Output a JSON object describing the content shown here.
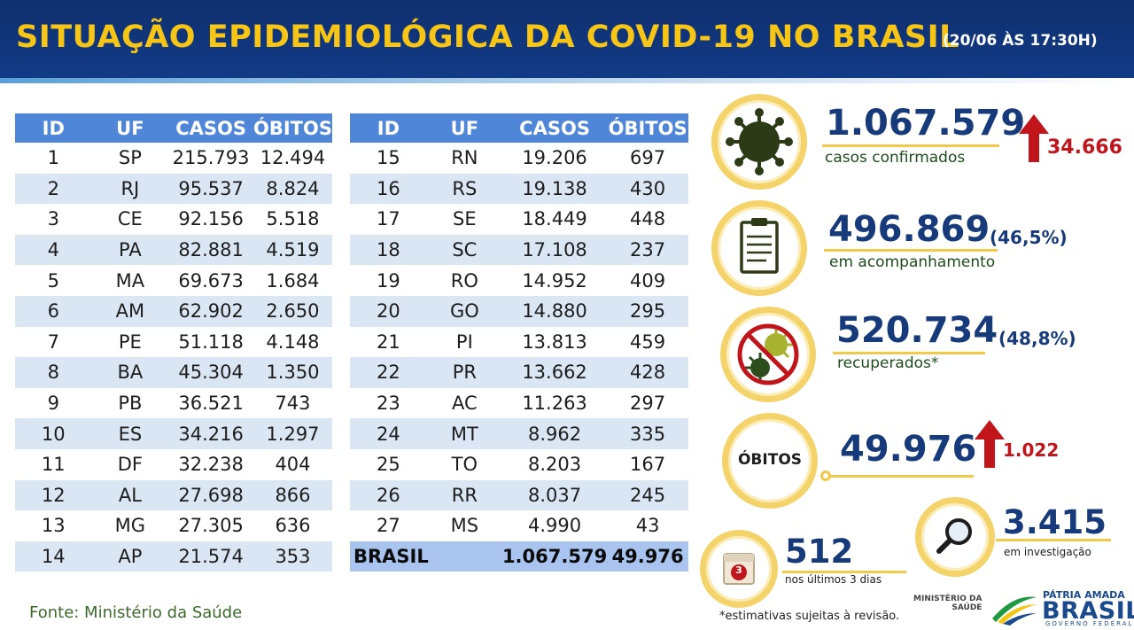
{
  "header": {
    "title": "SITUAÇÃO EPIDEMIOLÓGICA DA COVID-19 NO BRASIL",
    "date": "(20/06 ÀS 17:30H)"
  },
  "table_headers": {
    "id": "ID",
    "uf": "UF",
    "casos": "CASOS",
    "obitos": "ÓBITOS"
  },
  "states_left": [
    {
      "id": "1",
      "uf": "SP",
      "casos": "215.793",
      "obitos": "12.494"
    },
    {
      "id": "2",
      "uf": "RJ",
      "casos": "95.537",
      "obitos": "8.824"
    },
    {
      "id": "3",
      "uf": "CE",
      "casos": "92.156",
      "obitos": "5.518"
    },
    {
      "id": "4",
      "uf": "PA",
      "casos": "82.881",
      "obitos": "4.519"
    },
    {
      "id": "5",
      "uf": "MA",
      "casos": "69.673",
      "obitos": "1.684"
    },
    {
      "id": "6",
      "uf": "AM",
      "casos": "62.902",
      "obitos": "2.650"
    },
    {
      "id": "7",
      "uf": "PE",
      "casos": "51.118",
      "obitos": "4.148"
    },
    {
      "id": "8",
      "uf": "BA",
      "casos": "45.304",
      "obitos": "1.350"
    },
    {
      "id": "9",
      "uf": "PB",
      "casos": "36.521",
      "obitos": "743"
    },
    {
      "id": "10",
      "uf": "ES",
      "casos": "34.216",
      "obitos": "1.297"
    },
    {
      "id": "11",
      "uf": "DF",
      "casos": "32.238",
      "obitos": "404"
    },
    {
      "id": "12",
      "uf": "AL",
      "casos": "27.698",
      "obitos": "866"
    },
    {
      "id": "13",
      "uf": "MG",
      "casos": "27.305",
      "obitos": "636"
    },
    {
      "id": "14",
      "uf": "AP",
      "casos": "21.574",
      "obitos": "353"
    }
  ],
  "states_right": [
    {
      "id": "15",
      "uf": "RN",
      "casos": "19.206",
      "obitos": "697"
    },
    {
      "id": "16",
      "uf": "RS",
      "casos": "19.138",
      "obitos": "430"
    },
    {
      "id": "17",
      "uf": "SE",
      "casos": "18.449",
      "obitos": "448"
    },
    {
      "id": "18",
      "uf": "SC",
      "casos": "17.108",
      "obitos": "237"
    },
    {
      "id": "19",
      "uf": "RO",
      "casos": "14.952",
      "obitos": "409"
    },
    {
      "id": "20",
      "uf": "GO",
      "casos": "14.880",
      "obitos": "295"
    },
    {
      "id": "21",
      "uf": "PI",
      "casos": "13.813",
      "obitos": "459"
    },
    {
      "id": "22",
      "uf": "PR",
      "casos": "13.662",
      "obitos": "428"
    },
    {
      "id": "23",
      "uf": "AC",
      "casos": "11.263",
      "obitos": "297"
    },
    {
      "id": "24",
      "uf": "MT",
      "casos": "8.962",
      "obitos": "335"
    },
    {
      "id": "25",
      "uf": "TO",
      "casos": "8.203",
      "obitos": "167"
    },
    {
      "id": "26",
      "uf": "RR",
      "casos": "8.037",
      "obitos": "245"
    },
    {
      "id": "27",
      "uf": "MS",
      "casos": "4.990",
      "obitos": "43"
    }
  ],
  "total": {
    "label": "BRASIL",
    "casos": "1.067.579",
    "obitos": "49.976"
  },
  "source": "Fonte: Ministério da Saúde",
  "summary": {
    "confirmed": {
      "value": "1.067.579",
      "label": "casos confirmados",
      "increase": "34.666"
    },
    "monitoring": {
      "value": "496.869",
      "percent": "(46,5%)",
      "label": "em acompanhamento"
    },
    "recovered": {
      "value": "520.734",
      "percent": "(48,8%)",
      "label": "recuperados*"
    },
    "deaths": {
      "badge": "ÓBITOS",
      "value": "49.976",
      "increase": "1.022"
    },
    "last3days": {
      "value": "512",
      "label": "nos últimos 3 dias",
      "calendar_number": "3"
    },
    "investigation": {
      "value": "3.415",
      "label": "em investigação"
    }
  },
  "footnote": "*estimativas sujeitas à revisão.",
  "ministry": {
    "line1": "MINISTÉRIO DA",
    "line2": "SAÚDE"
  },
  "brand": {
    "top": "PÁTRIA AMADA",
    "name": "BRASIL",
    "sub": "GOVERNO FEDERAL"
  },
  "colors": {
    "header_bg": "#123b86",
    "title": "#f7c515",
    "table_header": "#4f86d8",
    "row_alt": "#dbe6f5",
    "total_row": "#a9c4ee",
    "accent_ring": "#f3d36a",
    "value_blue": "#173a7a",
    "increase_red": "#c0161b"
  },
  "icons": [
    "virus-icon",
    "clipboard-icon",
    "no-virus-icon",
    "calendar-icon",
    "magnifier-icon",
    "up-arrow-icon"
  ]
}
